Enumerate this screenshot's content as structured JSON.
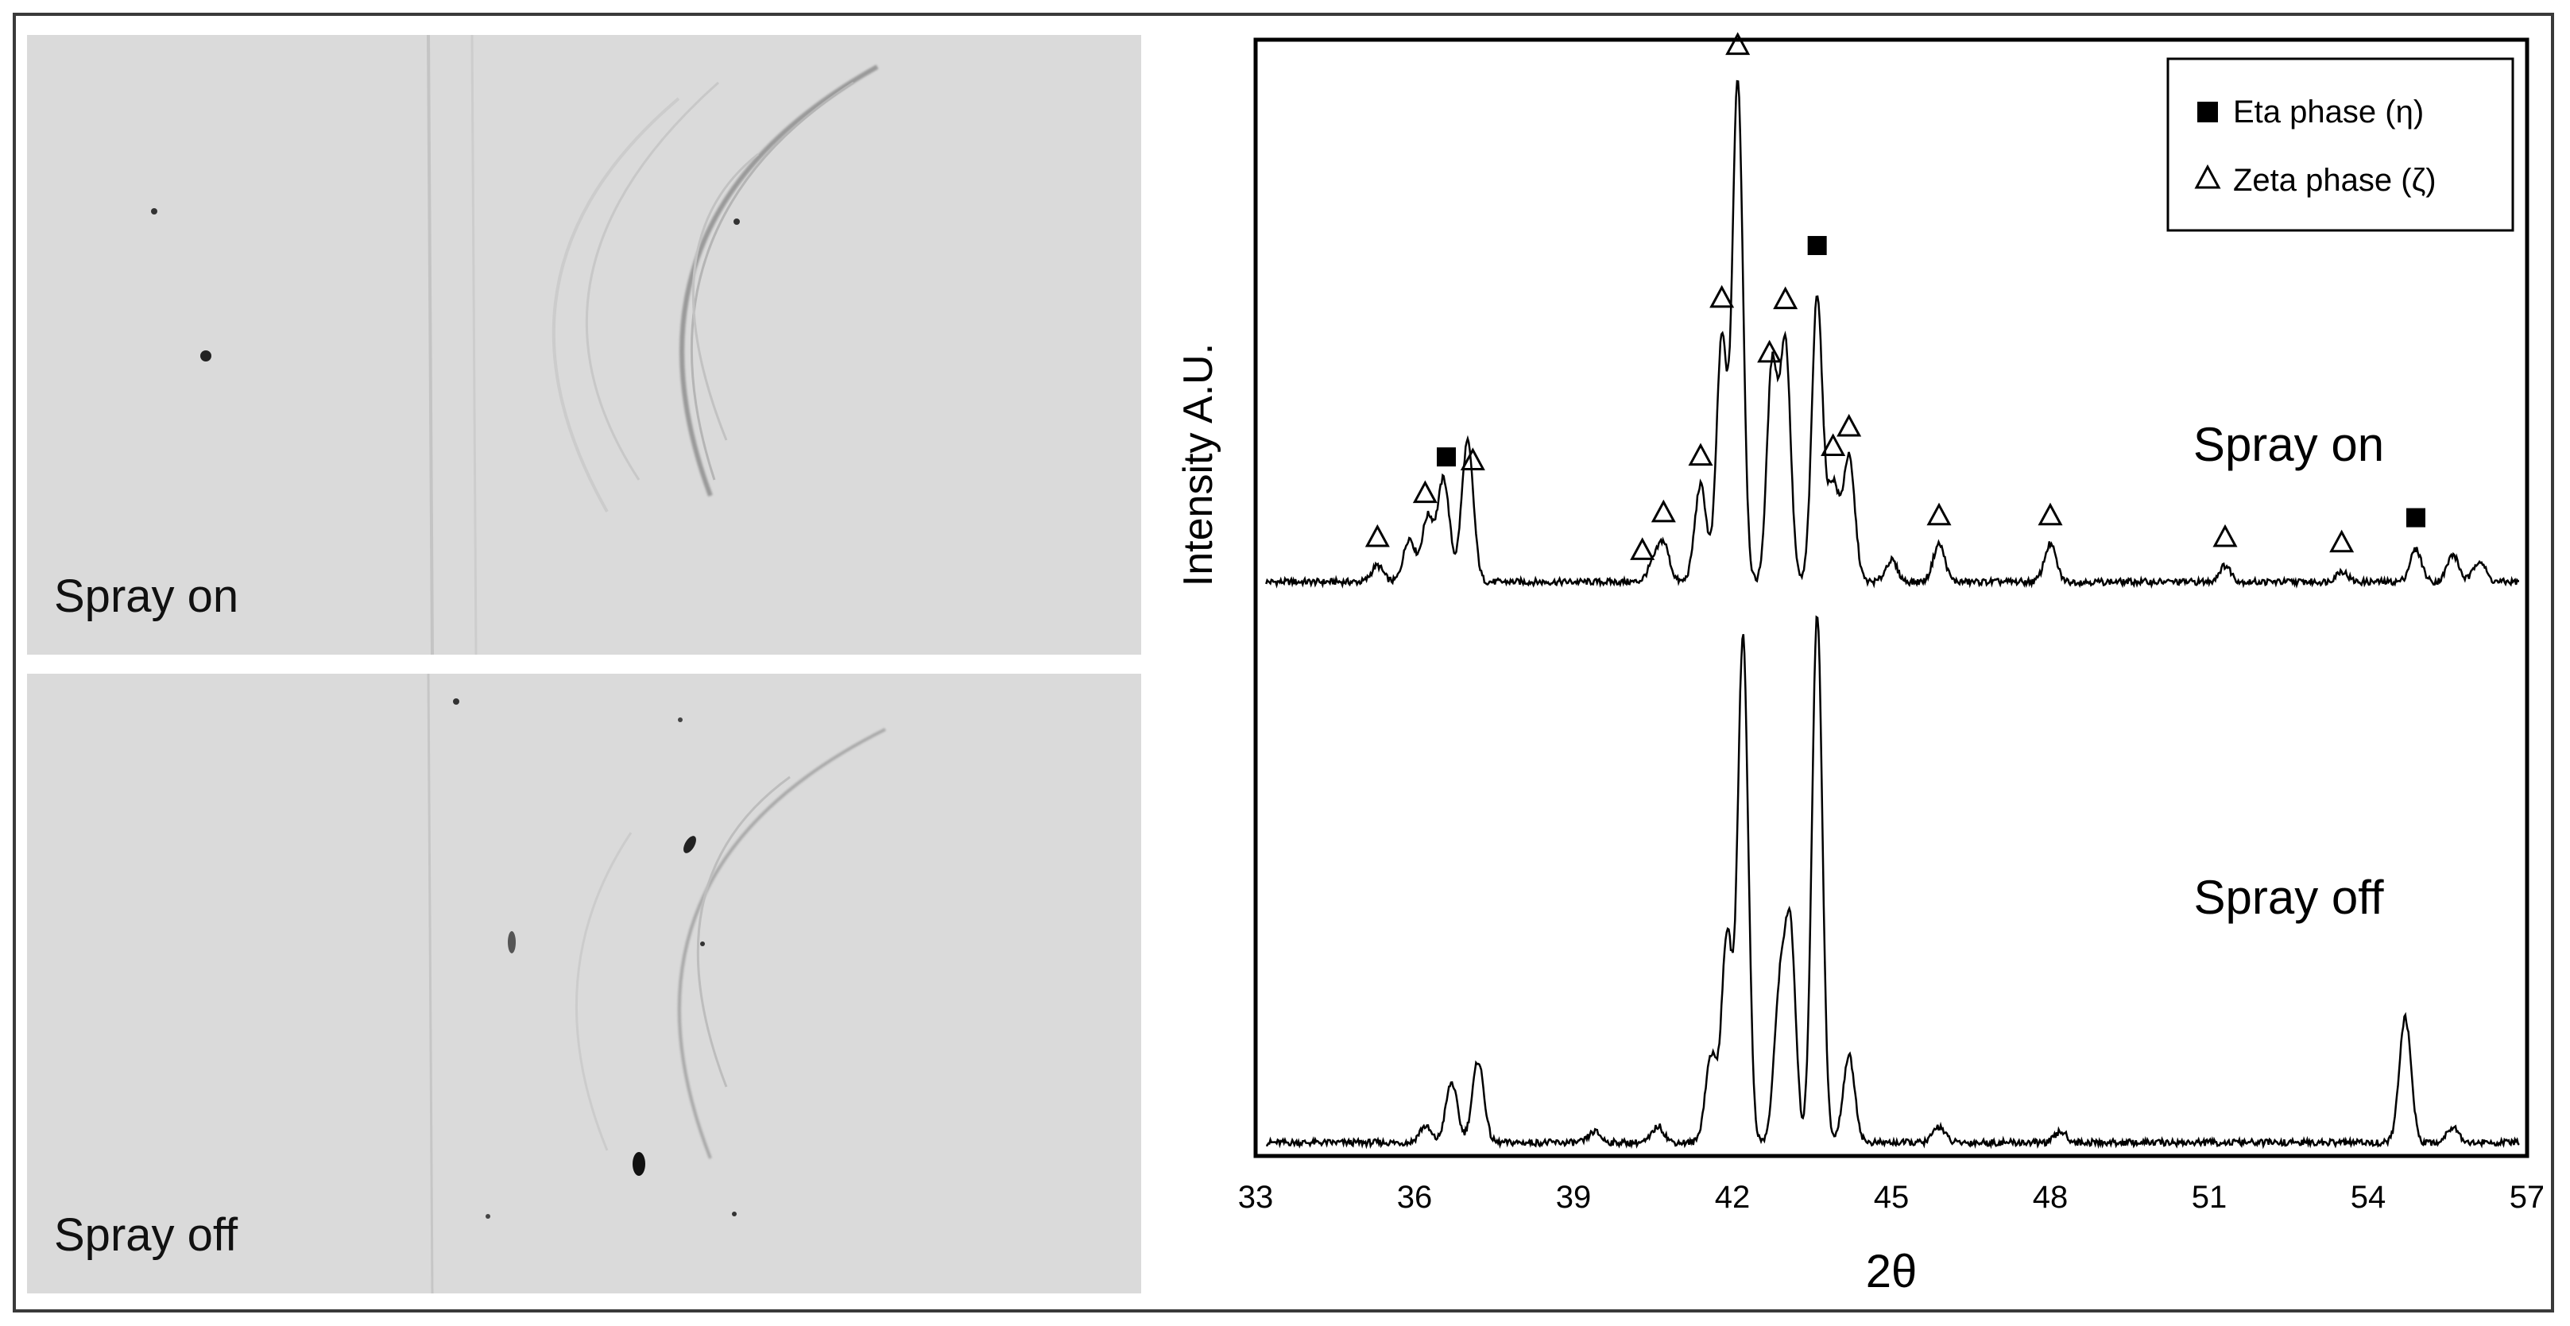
{
  "images": {
    "top_label": "Spray on",
    "bottom_label": "Spray off"
  },
  "chart_data": {
    "type": "line",
    "xlabel": "2θ",
    "ylabel": "Intensity A.U.",
    "xlim": [
      33,
      57
    ],
    "xticks": [
      33,
      36,
      39,
      42,
      45,
      48,
      51,
      54,
      57
    ],
    "grid": false,
    "legend": {
      "placement": "top-right",
      "entries": [
        {
          "label": "Eta phase (η)",
          "marker": "filled-square"
        },
        {
          "label": "Zeta phase (ζ)",
          "marker": "open-triangle"
        }
      ]
    },
    "series": [
      {
        "name": "Spray on",
        "baseline": 0.07,
        "peaks": [
          {
            "x": 35.3,
            "h": 0.03
          },
          {
            "x": 35.9,
            "h": 0.08
          },
          {
            "x": 36.25,
            "h": 0.12
          },
          {
            "x": 36.55,
            "h": 0.19
          },
          {
            "x": 37.0,
            "h": 0.26
          },
          {
            "x": 40.5,
            "h": 0.03
          },
          {
            "x": 40.7,
            "h": 0.07
          },
          {
            "x": 41.4,
            "h": 0.18
          },
          {
            "x": 41.8,
            "h": 0.45
          },
          {
            "x": 42.1,
            "h": 0.93
          },
          {
            "x": 42.75,
            "h": 0.4
          },
          {
            "x": 43.0,
            "h": 0.44
          },
          {
            "x": 43.6,
            "h": 0.53
          },
          {
            "x": 43.9,
            "h": 0.18
          },
          {
            "x": 44.2,
            "h": 0.23
          },
          {
            "x": 45.0,
            "h": 0.04
          },
          {
            "x": 45.9,
            "h": 0.07
          },
          {
            "x": 48.0,
            "h": 0.07
          },
          {
            "x": 51.3,
            "h": 0.03
          },
          {
            "x": 53.5,
            "h": 0.02
          },
          {
            "x": 54.9,
            "h": 0.06
          },
          {
            "x": 55.6,
            "h": 0.05
          },
          {
            "x": 56.1,
            "h": 0.04
          }
        ]
      },
      {
        "name": "Spray off",
        "baseline": 0.01,
        "peaks": [
          {
            "x": 36.2,
            "h": 0.03
          },
          {
            "x": 36.7,
            "h": 0.11
          },
          {
            "x": 37.2,
            "h": 0.15
          },
          {
            "x": 39.4,
            "h": 0.02
          },
          {
            "x": 40.6,
            "h": 0.03
          },
          {
            "x": 41.6,
            "h": 0.16
          },
          {
            "x": 41.9,
            "h": 0.38
          },
          {
            "x": 42.2,
            "h": 0.93
          },
          {
            "x": 42.9,
            "h": 0.28
          },
          {
            "x": 43.1,
            "h": 0.36
          },
          {
            "x": 43.6,
            "h": 0.97
          },
          {
            "x": 44.2,
            "h": 0.16
          },
          {
            "x": 45.9,
            "h": 0.03
          },
          {
            "x": 48.2,
            "h": 0.02
          },
          {
            "x": 54.7,
            "h": 0.23
          },
          {
            "x": 55.6,
            "h": 0.03
          }
        ]
      }
    ],
    "annotations": {
      "eta_markers": [
        36.6,
        43.6,
        54.9
      ],
      "zeta_markers": [
        35.3,
        36.2,
        37.1,
        40.3,
        40.7,
        41.4,
        41.8,
        42.1,
        42.7,
        43.0,
        43.9,
        44.2,
        45.9,
        48.0,
        51.3,
        53.5
      ]
    }
  }
}
